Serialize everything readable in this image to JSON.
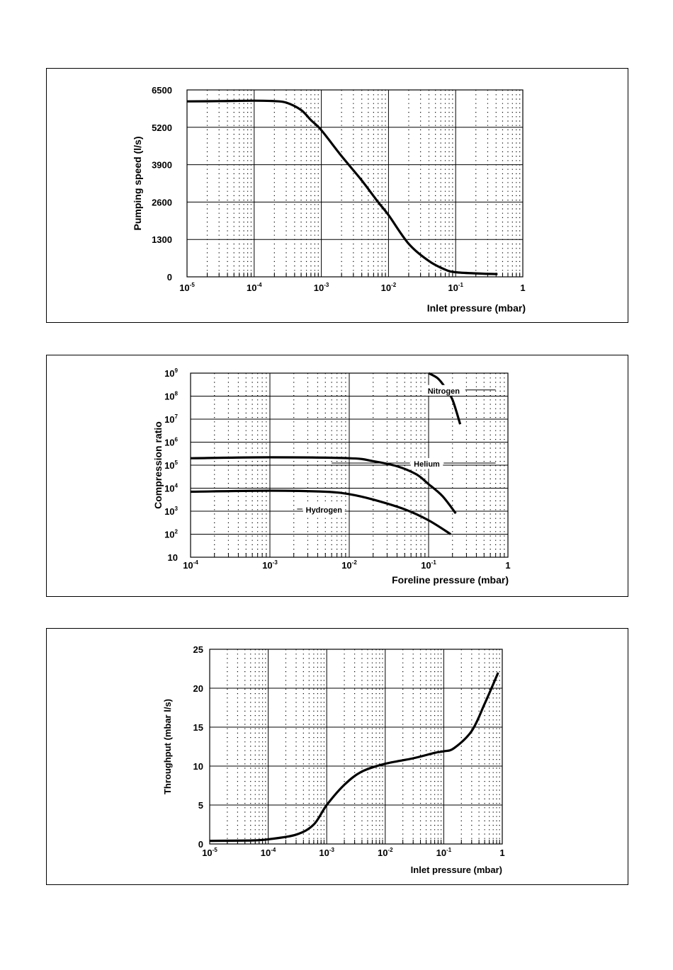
{
  "chart_data": [
    {
      "type": "line",
      "xscale": "log",
      "xlim": [
        1e-05,
        1
      ],
      "ylim": [
        0,
        6500
      ],
      "xticks": [
        1e-05,
        0.0001,
        0.001,
        0.01,
        0.1,
        1
      ],
      "xtick_labels": [
        {
          "base": "10",
          "exp": "-5"
        },
        {
          "base": "10",
          "exp": "-4"
        },
        {
          "base": "10",
          "exp": "-3"
        },
        {
          "base": "10",
          "exp": "-2"
        },
        {
          "base": "10",
          "exp": "-1"
        },
        {
          "base": "1",
          "exp": ""
        }
      ],
      "yticks": [
        0,
        1300,
        2600,
        3900,
        5200,
        6500
      ],
      "ytick_labels": [
        "0",
        "1300",
        "2600",
        "3900",
        "5200",
        "6500"
      ],
      "xlabel": "Inlet pressure (mbar)",
      "ylabel": "Pumping speed (l/s)",
      "grid": true,
      "series": [
        {
          "name": "",
          "x": [
            1e-05,
            3e-05,
            0.0001,
            0.0002,
            0.0003,
            0.0005,
            0.0007,
            0.001,
            0.002,
            0.004,
            0.007,
            0.01,
            0.02,
            0.04,
            0.07,
            0.1,
            0.2,
            0.42
          ],
          "y": [
            6100,
            6110,
            6125,
            6110,
            6060,
            5800,
            5450,
            5100,
            4200,
            3350,
            2600,
            2150,
            1150,
            550,
            250,
            160,
            120,
            95
          ]
        }
      ]
    },
    {
      "type": "line",
      "xscale": "log",
      "yscale": "log",
      "xlim": [
        0.0001,
        1
      ],
      "ylim": [
        10,
        1000000000
      ],
      "xticks": [
        0.0001,
        0.001,
        0.01,
        0.1,
        1
      ],
      "xtick_labels": [
        {
          "base": "10",
          "exp": "-4"
        },
        {
          "base": "10",
          "exp": "-3"
        },
        {
          "base": "10",
          "exp": "-2"
        },
        {
          "base": "10",
          "exp": "-1"
        },
        {
          "base": "1",
          "exp": ""
        }
      ],
      "yticks": [
        10,
        100,
        1000,
        10000,
        100000,
        1000000,
        10000000,
        100000000,
        1000000000
      ],
      "ytick_labels": [
        {
          "base": "10",
          "exp": ""
        },
        {
          "base": "10",
          "exp": "2"
        },
        {
          "base": "10",
          "exp": "3"
        },
        {
          "base": "10",
          "exp": "4"
        },
        {
          "base": "10",
          "exp": "5"
        },
        {
          "base": "10",
          "exp": "6"
        },
        {
          "base": "10",
          "exp": "7"
        },
        {
          "base": "10",
          "exp": "8"
        },
        {
          "base": "10",
          "exp": "9"
        }
      ],
      "xlabel": "Foreline pressure (mbar)",
      "ylabel": "Compression ratio",
      "grid": true,
      "series": [
        {
          "name": "Nitrogen",
          "x": [
            0.1,
            0.13,
            0.16,
            0.2,
            0.25
          ],
          "y": [
            1000000000,
            600000000,
            250000000,
            70000000,
            6000000
          ]
        },
        {
          "name": "Helium",
          "x": [
            0.0001,
            0.001,
            0.01,
            0.02,
            0.04,
            0.07,
            0.1,
            0.15,
            0.22
          ],
          "y": [
            200000,
            220000,
            200000,
            150000,
            90000,
            40000,
            15000,
            4500,
            800
          ]
        },
        {
          "name": "Hydrogen",
          "x": [
            0.0001,
            0.001,
            0.005,
            0.01,
            0.02,
            0.05,
            0.1,
            0.19
          ],
          "y": [
            7000,
            7800,
            7000,
            5500,
            3200,
            1200,
            400,
            100
          ]
        }
      ]
    },
    {
      "type": "line",
      "xscale": "log",
      "xlim": [
        1e-05,
        1
      ],
      "ylim": [
        0,
        25
      ],
      "xticks": [
        1e-05,
        0.0001,
        0.001,
        0.01,
        0.1,
        1
      ],
      "xtick_labels": [
        {
          "base": "10",
          "exp": "-5"
        },
        {
          "base": "10",
          "exp": "-4"
        },
        {
          "base": "10",
          "exp": "-3"
        },
        {
          "base": "10",
          "exp": "-2"
        },
        {
          "base": "10",
          "exp": "-1"
        },
        {
          "base": "1",
          "exp": ""
        }
      ],
      "yticks": [
        0,
        5,
        10,
        15,
        20,
        25
      ],
      "ytick_labels": [
        "0",
        "5",
        "10",
        "15",
        "20",
        "25"
      ],
      "xlabel": "Inlet pressure (mbar)",
      "ylabel": "Throughput (mbar l/s)",
      "grid": true,
      "series": [
        {
          "name": "",
          "x": [
            1e-05,
            5e-05,
            0.0001,
            0.0003,
            0.0006,
            0.001,
            0.002,
            0.004,
            0.01,
            0.03,
            0.07,
            0.1,
            0.15,
            0.3,
            0.5,
            0.85
          ],
          "y": [
            0.4,
            0.45,
            0.6,
            1.2,
            2.5,
            5.0,
            7.6,
            9.3,
            10.3,
            11.0,
            11.7,
            11.9,
            12.3,
            14.5,
            18.0,
            22.0
          ]
        }
      ]
    }
  ]
}
